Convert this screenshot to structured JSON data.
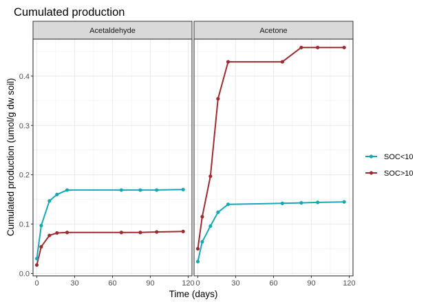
{
  "chart_data": {
    "type": "line",
    "title": "Cumulated production",
    "xlabel": "Time (days)",
    "ylabel": "Cumulated production (umol/g dw soil)",
    "xlim": [
      -3,
      123
    ],
    "ylim": [
      -0.005,
      0.475
    ],
    "x_ticks": [
      0,
      30,
      60,
      90,
      120
    ],
    "x_tick_labels": [
      "0",
      "30",
      "60",
      "90",
      "120"
    ],
    "y_ticks": [
      0.0,
      0.1,
      0.2,
      0.3,
      0.4
    ],
    "y_tick_labels": [
      "0.0",
      "0.1",
      "0.2",
      "0.3",
      "0.4"
    ],
    "grid": true,
    "legend_position": "right",
    "legend": [
      {
        "name": "SOC<10",
        "color": "#18A6B3"
      },
      {
        "name": "SOC>10",
        "color": "#9B2B2F"
      }
    ],
    "facets": [
      {
        "label": "Acetaldehyde",
        "series": [
          {
            "name": "SOC<10",
            "x": [
              0,
              3.5,
              10,
              16,
              24,
              67,
              82,
              95,
              116
            ],
            "y": [
              0.03,
              0.097,
              0.147,
              0.16,
              0.169,
              0.169,
              0.169,
              0.169,
              0.17
            ]
          },
          {
            "name": "SOC>10",
            "x": [
              0,
              3.5,
              10,
              16,
              24,
              67,
              82,
              95,
              116
            ],
            "y": [
              0.017,
              0.054,
              0.077,
              0.082,
              0.083,
              0.083,
              0.083,
              0.084,
              0.085
            ]
          }
        ]
      },
      {
        "label": "Acetone",
        "series": [
          {
            "name": "SOC<10",
            "x": [
              0,
              3.5,
              10,
              16,
              24,
              67,
              82,
              95,
              116
            ],
            "y": [
              0.024,
              0.064,
              0.096,
              0.124,
              0.14,
              0.142,
              0.143,
              0.144,
              0.145
            ]
          },
          {
            "name": "SOC>10",
            "x": [
              0,
              3.5,
              10,
              16,
              24,
              67,
              82,
              95,
              116
            ],
            "y": [
              0.05,
              0.115,
              0.197,
              0.354,
              0.429,
              0.429,
              0.458,
              0.458,
              0.458
            ]
          }
        ]
      }
    ]
  }
}
